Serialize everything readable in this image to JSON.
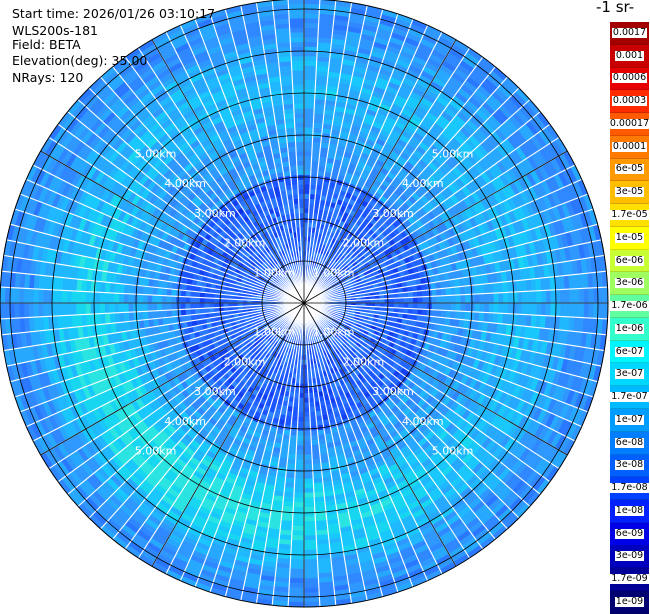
{
  "info": {
    "start_time": "Start time: 2026/01/26 03:10:17",
    "instrument": "WLS200s-181",
    "field": "Field: BETA",
    "elevation": "Elevation(deg): 35.00",
    "nrays": "NRays: 120"
  },
  "colorbar": {
    "title": "-1 sr-",
    "labels": [
      "0.0017",
      "0.001",
      "0.0006",
      "0.0003",
      "0.00017",
      "0.0001",
      "6e-05",
      "3e-05",
      "1.7e-05",
      "1e-05",
      "6e-06",
      "3e-06",
      "1.7e-06",
      "1e-06",
      "6e-07",
      "3e-07",
      "1.7e-07",
      "1e-07",
      "6e-08",
      "3e-08",
      "1.7e-08",
      "1e-08",
      "6e-09",
      "3e-09",
      "1.7e-09",
      "1e-09"
    ],
    "colors": [
      "#a50000",
      "#c80000",
      "#e80000",
      "#ff2a00",
      "#ff5a00",
      "#ff7a00",
      "#ff9a00",
      "#ffbf00",
      "#ffe000",
      "#ffff00",
      "#c8ff32",
      "#9fff60",
      "#60ff9f",
      "#33ffcc",
      "#00f5ff",
      "#00d8ff",
      "#00baff",
      "#009cff",
      "#007eff",
      "#0060ff",
      "#0040ff",
      "#0020ff",
      "#0000e6",
      "#0000bf",
      "#000099",
      "#000070"
    ],
    "text_colors": [
      "#ffffff",
      "#ffffff",
      "#ffffff",
      "#ffffff",
      "#000000",
      "#000000",
      "#000000",
      "#000000",
      "#000000",
      "#000000",
      "#000000",
      "#000000",
      "#000000",
      "#000000",
      "#000000",
      "#000000",
      "#000000",
      "#000000",
      "#000000",
      "#ffffff",
      "#ffffff",
      "#ffffff",
      "#ffffff",
      "#ffffff",
      "#ffffff",
      "#ffffff"
    ]
  },
  "ring_labels": [
    "1.00km",
    "2.00km",
    "3.00km",
    "4.00km",
    "5.00km"
  ],
  "nrays": 120
}
